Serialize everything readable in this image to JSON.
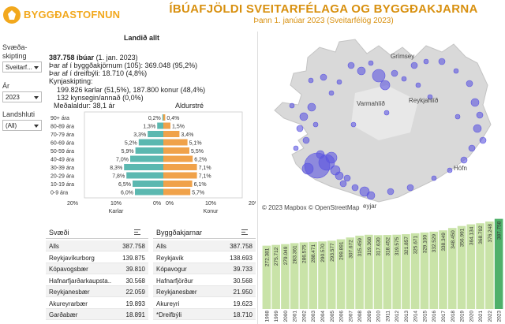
{
  "header": {
    "logo_text": "BYGGÐASTOFNUN",
    "title": "ÍBÚAFJÖLDI SVEITARFÉLAGA OG BYGGÐAKJARNA",
    "subtitle": "Þann 1. janúar 2023 (Sveitarfélög 2023)"
  },
  "filters": {
    "division_label_1": "Svæða-",
    "division_label_2": "skipting",
    "division_value": "Sveitarf...",
    "year_label": "Ár",
    "year_value": "2023",
    "region_label": "Landshluti",
    "region_value": "(All)"
  },
  "summary": {
    "heading": "Landið allt",
    "population": "387.758 íbúar",
    "population_date": "(1. jan. 2023)",
    "urban": "Þar af í byggðakjörnum (105): 369.048 (95,2%)",
    "rural": "Þar af í dreifbýli: 18.710 (4,8%)",
    "gender_heading": "Kynjaskipting:",
    "gender_line": "199.826 karlar (51,5%), 187.800 konur (48,4%)",
    "other_line": "132 kynsegin/annað (0,0%)",
    "avg_age": "Meðalaldur: 38,1 ár",
    "age_tree_label": "Aldurstré"
  },
  "pyramid": {
    "groups": [
      "90+ ára",
      "80-89 ára",
      "70-79 ára",
      "60-69 ára",
      "50-59 ára",
      "40-49 ára",
      "30-39 ára",
      "20-29 ára",
      "10-19 ára",
      "0-9 ára"
    ],
    "male": [
      0.2,
      1.3,
      3.3,
      5.2,
      5.9,
      7.0,
      8.3,
      7.8,
      6.5,
      6.0
    ],
    "female": [
      0.4,
      1.5,
      3.4,
      5.1,
      5.5,
      6.2,
      7.1,
      7.1,
      6.1,
      5.7
    ],
    "male_labels": [
      "0,2%",
      "1,3%",
      "3,3%",
      "5,2%",
      "5,9%",
      "7,0%",
      "8,3%",
      "7,8%",
      "6,5%",
      "6,0%"
    ],
    "female_labels": [
      "0,4%",
      "1,5%",
      "3,4%",
      "5,1%",
      "5,5%",
      "6,2%",
      "7,1%",
      "7,1%",
      "6,1%",
      "5,7%"
    ],
    "axis_ticks": [
      "20%",
      "10%",
      "0%",
      "0%",
      "10%",
      "20%"
    ],
    "male_axis": "Karlar",
    "female_axis": "Konur",
    "male_color": "#5bb8b0",
    "female_color": "#f0a24a"
  },
  "table_municipalities": {
    "header": "Svæði",
    "rows": [
      {
        "name": "Alls",
        "value": "387.758"
      },
      {
        "name": "Reykjavíkurborg",
        "value": "139.875"
      },
      {
        "name": "Kópavogsbær",
        "value": "39.810"
      },
      {
        "name": "Hafnarfjarðarkaupsta..",
        "value": "30.568"
      },
      {
        "name": "Reykjanesbær",
        "value": "22.059"
      },
      {
        "name": "Akureyrarbær",
        "value": "19.893"
      },
      {
        "name": "Garðabær",
        "value": "18.891"
      }
    ]
  },
  "table_towns": {
    "header": "Byggðakjarnar",
    "rows": [
      {
        "name": "Alls",
        "value": "387.758"
      },
      {
        "name": "Reykjavík",
        "value": "138.693"
      },
      {
        "name": "Kópavogur",
        "value": "39.733"
      },
      {
        "name": "Hafnarfjörður",
        "value": "30.568"
      },
      {
        "name": "Reykjanesbær",
        "value": "21.950"
      },
      {
        "name": "Akureyri",
        "value": "19.623"
      },
      {
        "name": "*Dreifbýli",
        "value": "18.710"
      }
    ]
  },
  "map": {
    "labels": {
      "grimsey": "Grímsey",
      "varmahlid": "Varmahlíð",
      "reykjahlid": "Reykjahlíð",
      "hofn": "Höfn",
      "eyjar": "eyjar"
    },
    "copyright": "© 2023 Mapbox  © OpenStreetMap",
    "land_color": "#d9d9d9",
    "bubble_color": "#5b55e0"
  },
  "chart_data": {
    "type": "bar",
    "categories": [
      "1998",
      "1999",
      "2000",
      "2001",
      "2002",
      "2003",
      "2004",
      "2005",
      "2006",
      "2007",
      "2008",
      "2009",
      "2010",
      "2011",
      "2012",
      "2013",
      "2014",
      "2015",
      "2016",
      "2017",
      "2018",
      "2019",
      "2020",
      "2021",
      "2022",
      "2023"
    ],
    "values": [
      272381,
      275712,
      279049,
      283361,
      286575,
      288471,
      290570,
      293577,
      299891,
      307672,
      315459,
      319368,
      317630,
      318452,
      319575,
      321857,
      325671,
      329100,
      332529,
      338349,
      348450,
      356991,
      364134,
      368792,
      376248,
      387758
    ],
    "labels": [
      "272.381",
      "275.712",
      "279.049",
      "283.361",
      "286.575",
      "288.471",
      "290.570",
      "293.577",
      "299.891",
      "307.672",
      "315.459",
      "319.368",
      "317.630",
      "318.452",
      "319.575",
      "321.857",
      "325.671",
      "329.100",
      "332.529",
      "338.349",
      "348.450",
      "356.991",
      "364.134",
      "368.792",
      "376.248",
      "387.758"
    ],
    "bar_color": "#c9e3a8",
    "highlight_color": "#4fb06a"
  }
}
